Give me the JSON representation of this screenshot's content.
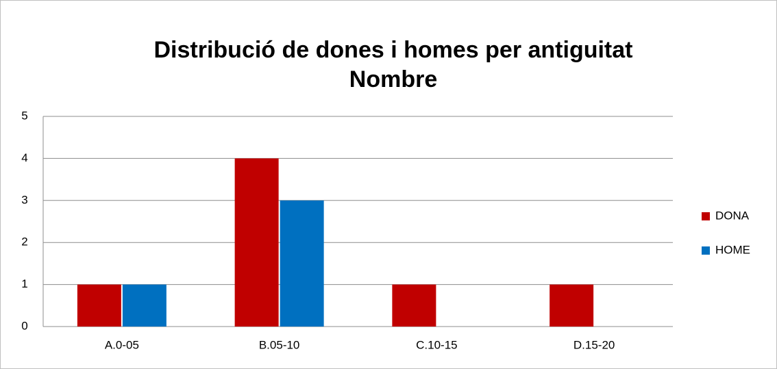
{
  "chart_data": {
    "type": "bar",
    "title": [
      "Distribució de dones i homes per antiguitat",
      "Nombre"
    ],
    "categories": [
      "A.0-05",
      "B.05-10",
      "C.10-15",
      "D.15-20"
    ],
    "series": [
      {
        "name": "DONA",
        "color": "#c00000",
        "values": [
          1,
          4,
          1,
          1
        ]
      },
      {
        "name": "HOME",
        "color": "#0070c0",
        "values": [
          1,
          3,
          0,
          0
        ]
      }
    ],
    "ylim": [
      0,
      5
    ],
    "yticks": [
      0,
      1,
      2,
      3,
      4,
      5
    ],
    "grid": true,
    "legend": "right"
  }
}
